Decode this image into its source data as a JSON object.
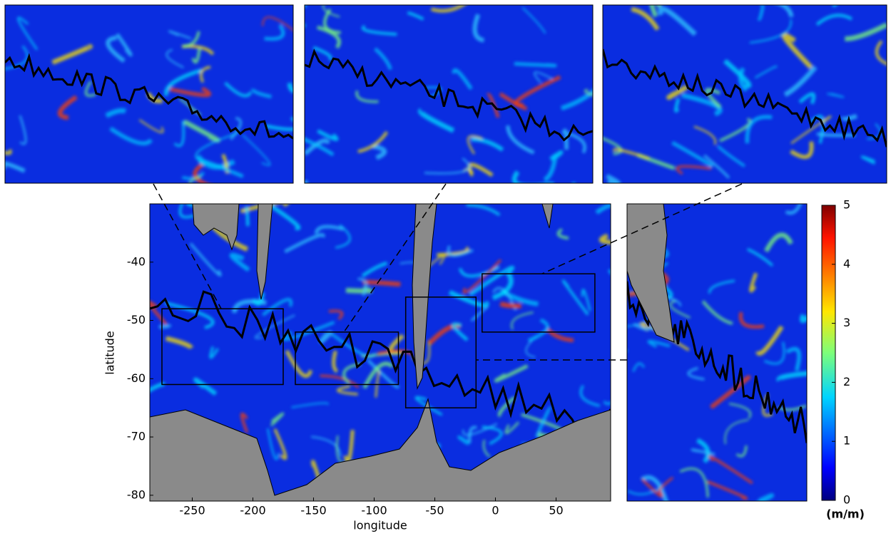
{
  "chart_data": {
    "type": "map-heatmap",
    "xlabel": "longitude",
    "ylabel": "latitude",
    "xlim": [
      -285,
      95
    ],
    "xticks": [
      -250,
      -200,
      -150,
      -100,
      -50,
      0,
      50
    ],
    "ylim": [
      -81,
      -30
    ],
    "yticks": [
      -80,
      -70,
      -60,
      -50,
      -40
    ],
    "colorbar": {
      "label": "(m/m)",
      "lim": [
        0,
        5
      ],
      "ticks": [
        0,
        1,
        2,
        3,
        4,
        5
      ]
    },
    "regions": [
      {
        "lon": [
          -275,
          -175
        ],
        "lat": [
          -61,
          -48
        ]
      },
      {
        "lon": [
          -165,
          -80
        ],
        "lat": [
          -61,
          -52
        ]
      },
      {
        "lon": [
          -74,
          -16
        ],
        "lat": [
          -65,
          -46
        ]
      },
      {
        "lon": [
          -11,
          82
        ],
        "lat": [
          -52,
          -42
        ]
      }
    ]
  }
}
